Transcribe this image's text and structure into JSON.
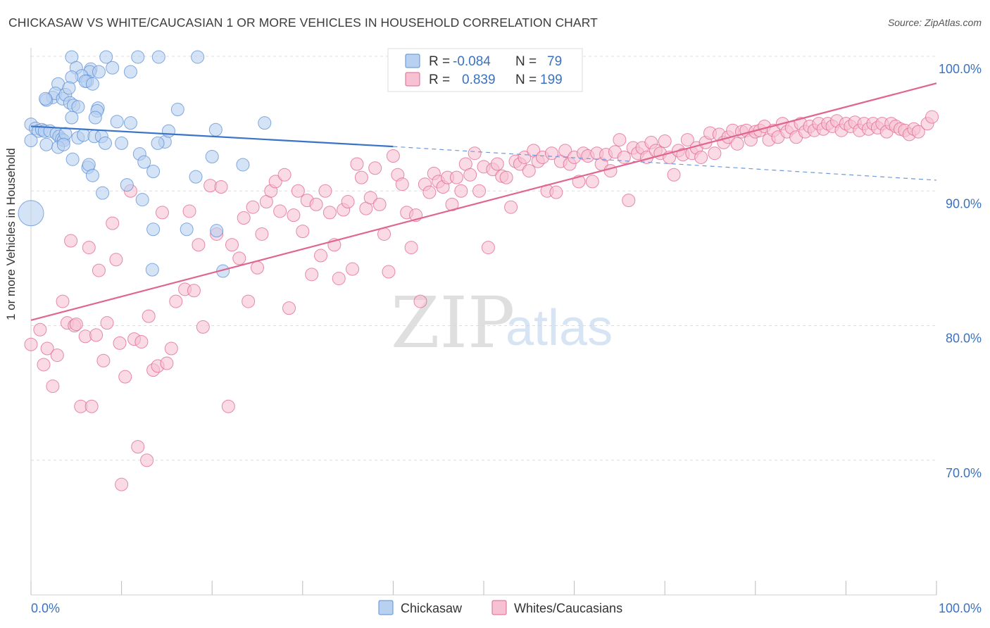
{
  "header": {
    "title": "CHICKASAW VS WHITE/CAUCASIAN 1 OR MORE VEHICLES IN HOUSEHOLD CORRELATION CHART",
    "source": "Source: ZipAtlas.com"
  },
  "watermark": {
    "zip": "ZIP",
    "atlas": "atlas"
  },
  "colors": {
    "blue": "#5b8fd6",
    "blue_fill": "#b9d1f0",
    "pink": "#e0668f",
    "pink_fill": "#f6c1d2",
    "axis_text": "#3b72c0",
    "grid": "#dddddd"
  },
  "legend_box": {
    "rows": [
      {
        "r_label": "R = ",
        "r_value": "-0.084",
        "n_label": "N = ",
        "n_value": "79",
        "color": "#5b8fd6"
      },
      {
        "r_label": "R = ",
        "r_value": "0.839",
        "n_label": "N = ",
        "n_value": "199",
        "color": "#e0668f"
      }
    ]
  },
  "chart_data": {
    "type": "scatter",
    "ylabel": "1 or more Vehicles in Household",
    "x_tick_labels": [
      "0.0%",
      "100.0%"
    ],
    "y_tick_labels": [
      "70.0%",
      "80.0%",
      "90.0%",
      "100.0%"
    ],
    "xlim": [
      0,
      1
    ],
    "ylim": [
      0.6,
      1.0
    ],
    "grid": true,
    "series": [
      {
        "name": "Chickasaw",
        "color": "#5b8fd6",
        "trend": [
          [
            0.0,
            0.948
          ],
          [
            0.4,
            0.933
          ]
        ],
        "trend_dashed": [
          [
            0.4,
            0.933
          ],
          [
            1.0,
            0.908
          ]
        ],
        "points": [
          [
            0.045,
            0.9995
          ],
          [
            0.083,
            0.9995
          ],
          [
            0.118,
            0.9995
          ],
          [
            0.141,
            0.9995
          ],
          [
            0.184,
            0.9995
          ],
          [
            0.05,
            0.9915
          ],
          [
            0.066,
            0.9905
          ],
          [
            0.065,
            0.9885
          ],
          [
            0.075,
            0.9885
          ],
          [
            0.056,
            0.9855
          ],
          [
            0.045,
            0.9845
          ],
          [
            0.062,
            0.9815
          ],
          [
            0.06,
            0.9815
          ],
          [
            0.068,
            0.9795
          ],
          [
            0.03,
            0.9795
          ],
          [
            0.024,
            0.9695
          ],
          [
            0.017,
            0.9675
          ],
          [
            0.027,
            0.9725
          ],
          [
            0.035,
            0.9685
          ],
          [
            0.038,
            0.9715
          ],
          [
            0.043,
            0.9655
          ],
          [
            0.047,
            0.9635
          ],
          [
            0.052,
            0.9625
          ],
          [
            0.074,
            0.9615
          ],
          [
            0.073,
            0.9595
          ],
          [
            0.071,
            0.9545
          ],
          [
            0.095,
            0.9515
          ],
          [
            0.045,
            0.9545
          ],
          [
            0.162,
            0.9605
          ],
          [
            0.11,
            0.9505
          ],
          [
            0.0,
            0.9495
          ],
          [
            0.005,
            0.9465
          ],
          [
            0.008,
            0.9445
          ],
          [
            0.012,
            0.9455
          ],
          [
            0.015,
            0.9445
          ],
          [
            0.021,
            0.9445
          ],
          [
            0.028,
            0.9425
          ],
          [
            0.031,
            0.9405
          ],
          [
            0.034,
            0.9385
          ],
          [
            0.036,
            0.9375
          ],
          [
            0.038,
            0.9425
          ],
          [
            0.052,
            0.9395
          ],
          [
            0.058,
            0.9415
          ],
          [
            0.07,
            0.9405
          ],
          [
            0.078,
            0.9405
          ],
          [
            0.082,
            0.9355
          ],
          [
            0.148,
            0.9365
          ],
          [
            0.152,
            0.9445
          ],
          [
            0.204,
            0.9455
          ],
          [
            0.258,
            0.9505
          ],
          [
            0.0,
            0.9375
          ],
          [
            0.017,
            0.9345
          ],
          [
            0.03,
            0.9325
          ],
          [
            0.036,
            0.9345
          ],
          [
            0.1,
            0.9355
          ],
          [
            0.12,
            0.9275
          ],
          [
            0.125,
            0.9215
          ],
          [
            0.14,
            0.9355
          ],
          [
            0.2,
            0.9255
          ],
          [
            0.234,
            0.9195
          ],
          [
            0.046,
            0.9235
          ],
          [
            0.063,
            0.9175
          ],
          [
            0.064,
            0.9195
          ],
          [
            0.068,
            0.9115
          ],
          [
            0.135,
            0.9145
          ],
          [
            0.106,
            0.9045
          ],
          [
            0.079,
            0.8985
          ],
          [
            0.123,
            0.8935
          ],
          [
            0.0,
            0.8835
          ],
          [
            0.135,
            0.8715
          ],
          [
            0.172,
            0.8715
          ],
          [
            0.205,
            0.8705
          ],
          [
            0.134,
            0.8415
          ],
          [
            0.212,
            0.8405
          ],
          [
            0.182,
            0.9105
          ],
          [
            0.016,
            0.9685
          ],
          [
            0.042,
            0.9765
          ],
          [
            0.09,
            0.9915
          ],
          [
            0.11,
            0.9885
          ]
        ]
      },
      {
        "name": "Whites/Caucasians",
        "color": "#e0668f",
        "trend": [
          [
            0.0,
            0.804
          ],
          [
            1.0,
            0.98
          ]
        ],
        "points": [
          [
            0.0,
            0.786
          ],
          [
            0.01,
            0.797
          ],
          [
            0.014,
            0.771
          ],
          [
            0.018,
            0.783
          ],
          [
            0.024,
            0.755
          ],
          [
            0.029,
            0.778
          ],
          [
            0.035,
            0.818
          ],
          [
            0.04,
            0.802
          ],
          [
            0.044,
            0.863
          ],
          [
            0.048,
            0.8
          ],
          [
            0.05,
            0.801
          ],
          [
            0.055,
            0.74
          ],
          [
            0.06,
            0.792
          ],
          [
            0.064,
            0.858
          ],
          [
            0.067,
            0.74
          ],
          [
            0.072,
            0.793
          ],
          [
            0.075,
            0.841
          ],
          [
            0.08,
            0.774
          ],
          [
            0.084,
            0.802
          ],
          [
            0.09,
            0.876
          ],
          [
            0.094,
            0.849
          ],
          [
            0.098,
            0.787
          ],
          [
            0.1,
            0.682
          ],
          [
            0.104,
            0.762
          ],
          [
            0.11,
            0.9
          ],
          [
            0.114,
            0.79
          ],
          [
            0.118,
            0.71
          ],
          [
            0.122,
            0.788
          ],
          [
            0.128,
            0.7
          ],
          [
            0.13,
            0.807
          ],
          [
            0.135,
            0.767
          ],
          [
            0.14,
            0.77
          ],
          [
            0.145,
            0.884
          ],
          [
            0.15,
            0.772
          ],
          [
            0.155,
            0.783
          ],
          [
            0.16,
            0.818
          ],
          [
            0.17,
            0.827
          ],
          [
            0.175,
            0.885
          ],
          [
            0.18,
            0.826
          ],
          [
            0.185,
            0.86
          ],
          [
            0.19,
            0.799
          ],
          [
            0.198,
            0.904
          ],
          [
            0.205,
            0.868
          ],
          [
            0.21,
            0.903
          ],
          [
            0.218,
            0.74
          ],
          [
            0.222,
            0.86
          ],
          [
            0.23,
            0.85
          ],
          [
            0.235,
            0.88
          ],
          [
            0.24,
            0.818
          ],
          [
            0.245,
            0.888
          ],
          [
            0.25,
            0.843
          ],
          [
            0.255,
            0.868
          ],
          [
            0.26,
            0.892
          ],
          [
            0.265,
            0.9
          ],
          [
            0.27,
            0.907
          ],
          [
            0.275,
            0.885
          ],
          [
            0.28,
            0.912
          ],
          [
            0.285,
            0.813
          ],
          [
            0.29,
            0.882
          ],
          [
            0.295,
            0.9
          ],
          [
            0.3,
            0.87
          ],
          [
            0.305,
            0.893
          ],
          [
            0.31,
            0.838
          ],
          [
            0.315,
            0.89
          ],
          [
            0.32,
            0.852
          ],
          [
            0.325,
            0.9
          ],
          [
            0.33,
            0.884
          ],
          [
            0.335,
            0.86
          ],
          [
            0.34,
            0.835
          ],
          [
            0.345,
            0.886
          ],
          [
            0.35,
            0.892
          ],
          [
            0.355,
            0.842
          ],
          [
            0.36,
            0.92
          ],
          [
            0.365,
            0.91
          ],
          [
            0.37,
            0.887
          ],
          [
            0.375,
            0.895
          ],
          [
            0.38,
            0.917
          ],
          [
            0.385,
            0.89
          ],
          [
            0.39,
            0.868
          ],
          [
            0.395,
            0.84
          ],
          [
            0.4,
            0.926
          ],
          [
            0.405,
            0.912
          ],
          [
            0.41,
            0.905
          ],
          [
            0.415,
            0.884
          ],
          [
            0.42,
            0.858
          ],
          [
            0.425,
            0.882
          ],
          [
            0.43,
            0.818
          ],
          [
            0.435,
            0.905
          ],
          [
            0.44,
            0.899
          ],
          [
            0.445,
            0.913
          ],
          [
            0.45,
            0.907
          ],
          [
            0.455,
            0.903
          ],
          [
            0.46,
            0.91
          ],
          [
            0.465,
            0.89
          ],
          [
            0.47,
            0.91
          ],
          [
            0.475,
            0.9
          ],
          [
            0.48,
            0.92
          ],
          [
            0.485,
            0.912
          ],
          [
            0.49,
            0.928
          ],
          [
            0.495,
            0.9
          ],
          [
            0.5,
            0.918
          ],
          [
            0.505,
            0.858
          ],
          [
            0.51,
            0.916
          ],
          [
            0.515,
            0.92
          ],
          [
            0.52,
            0.911
          ],
          [
            0.525,
            0.91
          ],
          [
            0.53,
            0.888
          ],
          [
            0.535,
            0.922
          ],
          [
            0.54,
            0.92
          ],
          [
            0.545,
            0.925
          ],
          [
            0.55,
            0.915
          ],
          [
            0.555,
            0.93
          ],
          [
            0.56,
            0.922
          ],
          [
            0.565,
            0.925
          ],
          [
            0.57,
            0.9
          ],
          [
            0.575,
            0.928
          ],
          [
            0.58,
            0.899
          ],
          [
            0.585,
            0.922
          ],
          [
            0.59,
            0.93
          ],
          [
            0.595,
            0.92
          ],
          [
            0.6,
            0.925
          ],
          [
            0.605,
            0.907
          ],
          [
            0.61,
            0.928
          ],
          [
            0.615,
            0.926
          ],
          [
            0.62,
            0.907
          ],
          [
            0.625,
            0.928
          ],
          [
            0.63,
            0.92
          ],
          [
            0.635,
            0.927
          ],
          [
            0.64,
            0.915
          ],
          [
            0.645,
            0.929
          ],
          [
            0.65,
            0.938
          ],
          [
            0.655,
            0.925
          ],
          [
            0.66,
            0.893
          ],
          [
            0.665,
            0.932
          ],
          [
            0.67,
            0.928
          ],
          [
            0.675,
            0.932
          ],
          [
            0.68,
            0.925
          ],
          [
            0.685,
            0.936
          ],
          [
            0.69,
            0.93
          ],
          [
            0.695,
            0.928
          ],
          [
            0.7,
            0.937
          ],
          [
            0.705,
            0.925
          ],
          [
            0.71,
            0.912
          ],
          [
            0.715,
            0.93
          ],
          [
            0.72,
            0.927
          ],
          [
            0.725,
            0.938
          ],
          [
            0.73,
            0.928
          ],
          [
            0.735,
            0.932
          ],
          [
            0.74,
            0.925
          ],
          [
            0.745,
            0.936
          ],
          [
            0.75,
            0.943
          ],
          [
            0.755,
            0.928
          ],
          [
            0.76,
            0.942
          ],
          [
            0.765,
            0.936
          ],
          [
            0.77,
            0.94
          ],
          [
            0.775,
            0.945
          ],
          [
            0.78,
            0.935
          ],
          [
            0.785,
            0.944
          ],
          [
            0.79,
            0.945
          ],
          [
            0.795,
            0.938
          ],
          [
            0.8,
            0.944
          ],
          [
            0.805,
            0.945
          ],
          [
            0.81,
            0.948
          ],
          [
            0.815,
            0.938
          ],
          [
            0.82,
            0.945
          ],
          [
            0.825,
            0.94
          ],
          [
            0.83,
            0.95
          ],
          [
            0.835,
            0.944
          ],
          [
            0.84,
            0.947
          ],
          [
            0.845,
            0.94
          ],
          [
            0.85,
            0.95
          ],
          [
            0.855,
            0.944
          ],
          [
            0.86,
            0.948
          ],
          [
            0.865,
            0.945
          ],
          [
            0.87,
            0.95
          ],
          [
            0.875,
            0.946
          ],
          [
            0.88,
            0.95
          ],
          [
            0.885,
            0.948
          ],
          [
            0.89,
            0.952
          ],
          [
            0.895,
            0.945
          ],
          [
            0.9,
            0.95
          ],
          [
            0.905,
            0.948
          ],
          [
            0.91,
            0.951
          ],
          [
            0.915,
            0.945
          ],
          [
            0.92,
            0.95
          ],
          [
            0.925,
            0.946
          ],
          [
            0.93,
            0.95
          ],
          [
            0.935,
            0.947
          ],
          [
            0.94,
            0.95
          ],
          [
            0.945,
            0.944
          ],
          [
            0.95,
            0.95
          ],
          [
            0.955,
            0.948
          ],
          [
            0.96,
            0.946
          ],
          [
            0.965,
            0.945
          ],
          [
            0.97,
            0.942
          ],
          [
            0.975,
            0.946
          ],
          [
            0.98,
            0.944
          ],
          [
            0.99,
            0.95
          ],
          [
            0.995,
            0.955
          ]
        ]
      }
    ]
  }
}
